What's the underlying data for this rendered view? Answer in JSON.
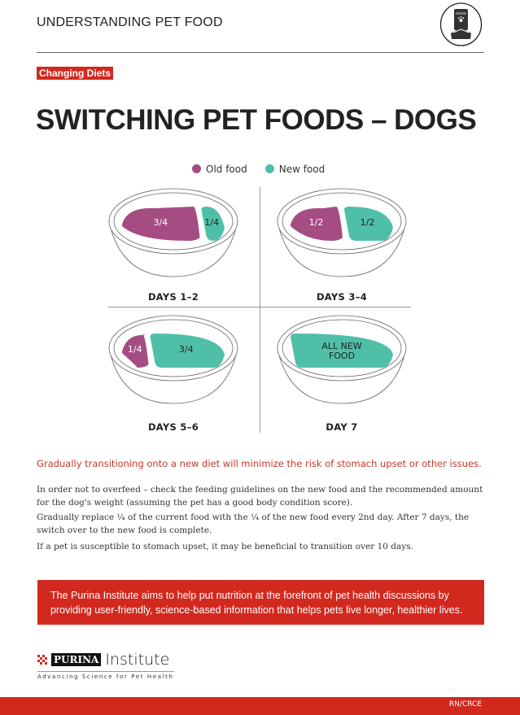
{
  "header": {
    "title": "UNDERSTANDING PET FOOD",
    "icon": "pet-food-bag-icon"
  },
  "tag": "Changing Diets",
  "title": "SWITCHING PET FOODS – DOGS",
  "legend": [
    {
      "label": "Old food",
      "color": "#a54d82"
    },
    {
      "label": "New food",
      "color": "#4fbfa8"
    }
  ],
  "stages": [
    {
      "label": "DAYS 1–2",
      "old": "3/4",
      "new": "1/4",
      "old_fraction": 0.75,
      "new_fraction": 0.25
    },
    {
      "label": "DAYS 3–4",
      "old": "1/2",
      "new": "1/2",
      "old_fraction": 0.5,
      "new_fraction": 0.5
    },
    {
      "label": "DAYS 5–6",
      "old": "1/4",
      "new": "3/4",
      "old_fraction": 0.25,
      "new_fraction": 0.75
    },
    {
      "label": "DAY 7",
      "all": "ALL NEW FOOD",
      "old_fraction": 0,
      "new_fraction": 1
    }
  ],
  "lead": "Gradually transitioning onto a new diet will minimize the risk of stomach upset or other issues.",
  "paragraphs": [
    "In order not to overfeed – check the feeding guidelines on the new food and the recommended amount for the dog's weight (assuming the pet has a good body condition score).",
    "Gradually replace ¼ of the current food with the ¼ of the new food every 2nd day. After 7 days, the switch over to the new food is complete.",
    "If a pet is susceptible to stomach upset, it may be beneficial to transition over 10 days."
  ],
  "mission": "The Purina Institute aims to help put nutrition at the forefront of pet health discussions by providing user-friendly, science-based information that helps pets live longer, healthier lives.",
  "logo": {
    "brand": "PURINA",
    "name": "Institute",
    "tagline": "Advancing Science for Pet Health"
  },
  "footer_code": "RN/CRCE"
}
